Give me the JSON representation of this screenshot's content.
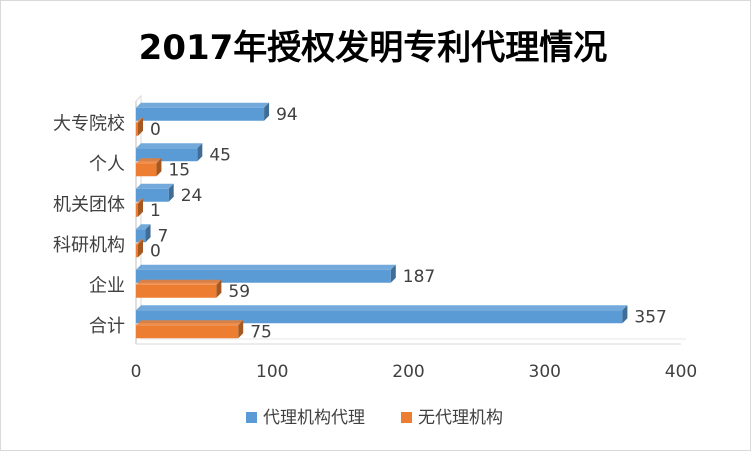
{
  "chart_data": {
    "type": "bar",
    "orientation": "horizontal",
    "title": "2017年授权发明专利代理情况",
    "categories": [
      "大专院校",
      "个人",
      "机关团体",
      "科研机构",
      "企业",
      "合计"
    ],
    "series": [
      {
        "name": "代理机构代理",
        "color": "#5B9BD5",
        "values": [
          94,
          45,
          24,
          7,
          187,
          357
        ]
      },
      {
        "name": "无代理机构",
        "color": "#ED7D31",
        "values": [
          0,
          15,
          1,
          0,
          59,
          75
        ]
      }
    ],
    "xlim": [
      0,
      400
    ],
    "xticks": [
      0,
      100,
      200,
      300,
      400
    ],
    "xlabel": "",
    "ylabel": "",
    "grid": false,
    "legend": "bottom"
  }
}
